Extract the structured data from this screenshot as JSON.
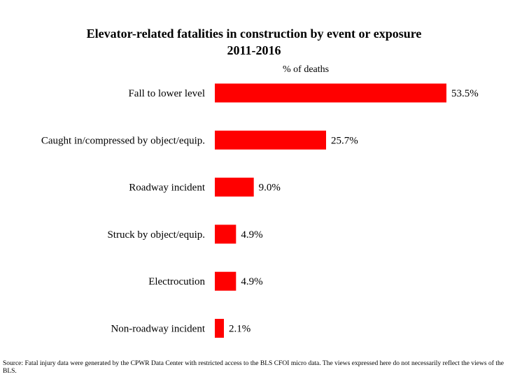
{
  "chart_data": {
    "type": "bar",
    "orientation": "horizontal",
    "title": "Elevator-related fatalities in construction  by event or exposure",
    "subtitle": "2011-2016",
    "unit_label": "% of deaths",
    "categories": [
      "Fall to lower level",
      "Caught in/compressed by object/equip.",
      "Roadway incident",
      "Struck by object/equip.",
      "Electrocution",
      "Non-roadway incident"
    ],
    "values": [
      53.5,
      25.7,
      9.0,
      4.9,
      4.9,
      2.1
    ],
    "value_labels": [
      "53.5%",
      "25.7%",
      "9.0%",
      "4.9%",
      "4.9%",
      "2.1%"
    ],
    "xlim": [
      0,
      53.5
    ],
    "grid": false,
    "legend": "none",
    "bar_color": "#ff0000"
  },
  "source_note": "Source: Fatal injury data were generated by the CPWR Data Center with restricted access to the BLS CFOI micro data. The views expressed here do not necessarily reflect the views of the BLS."
}
